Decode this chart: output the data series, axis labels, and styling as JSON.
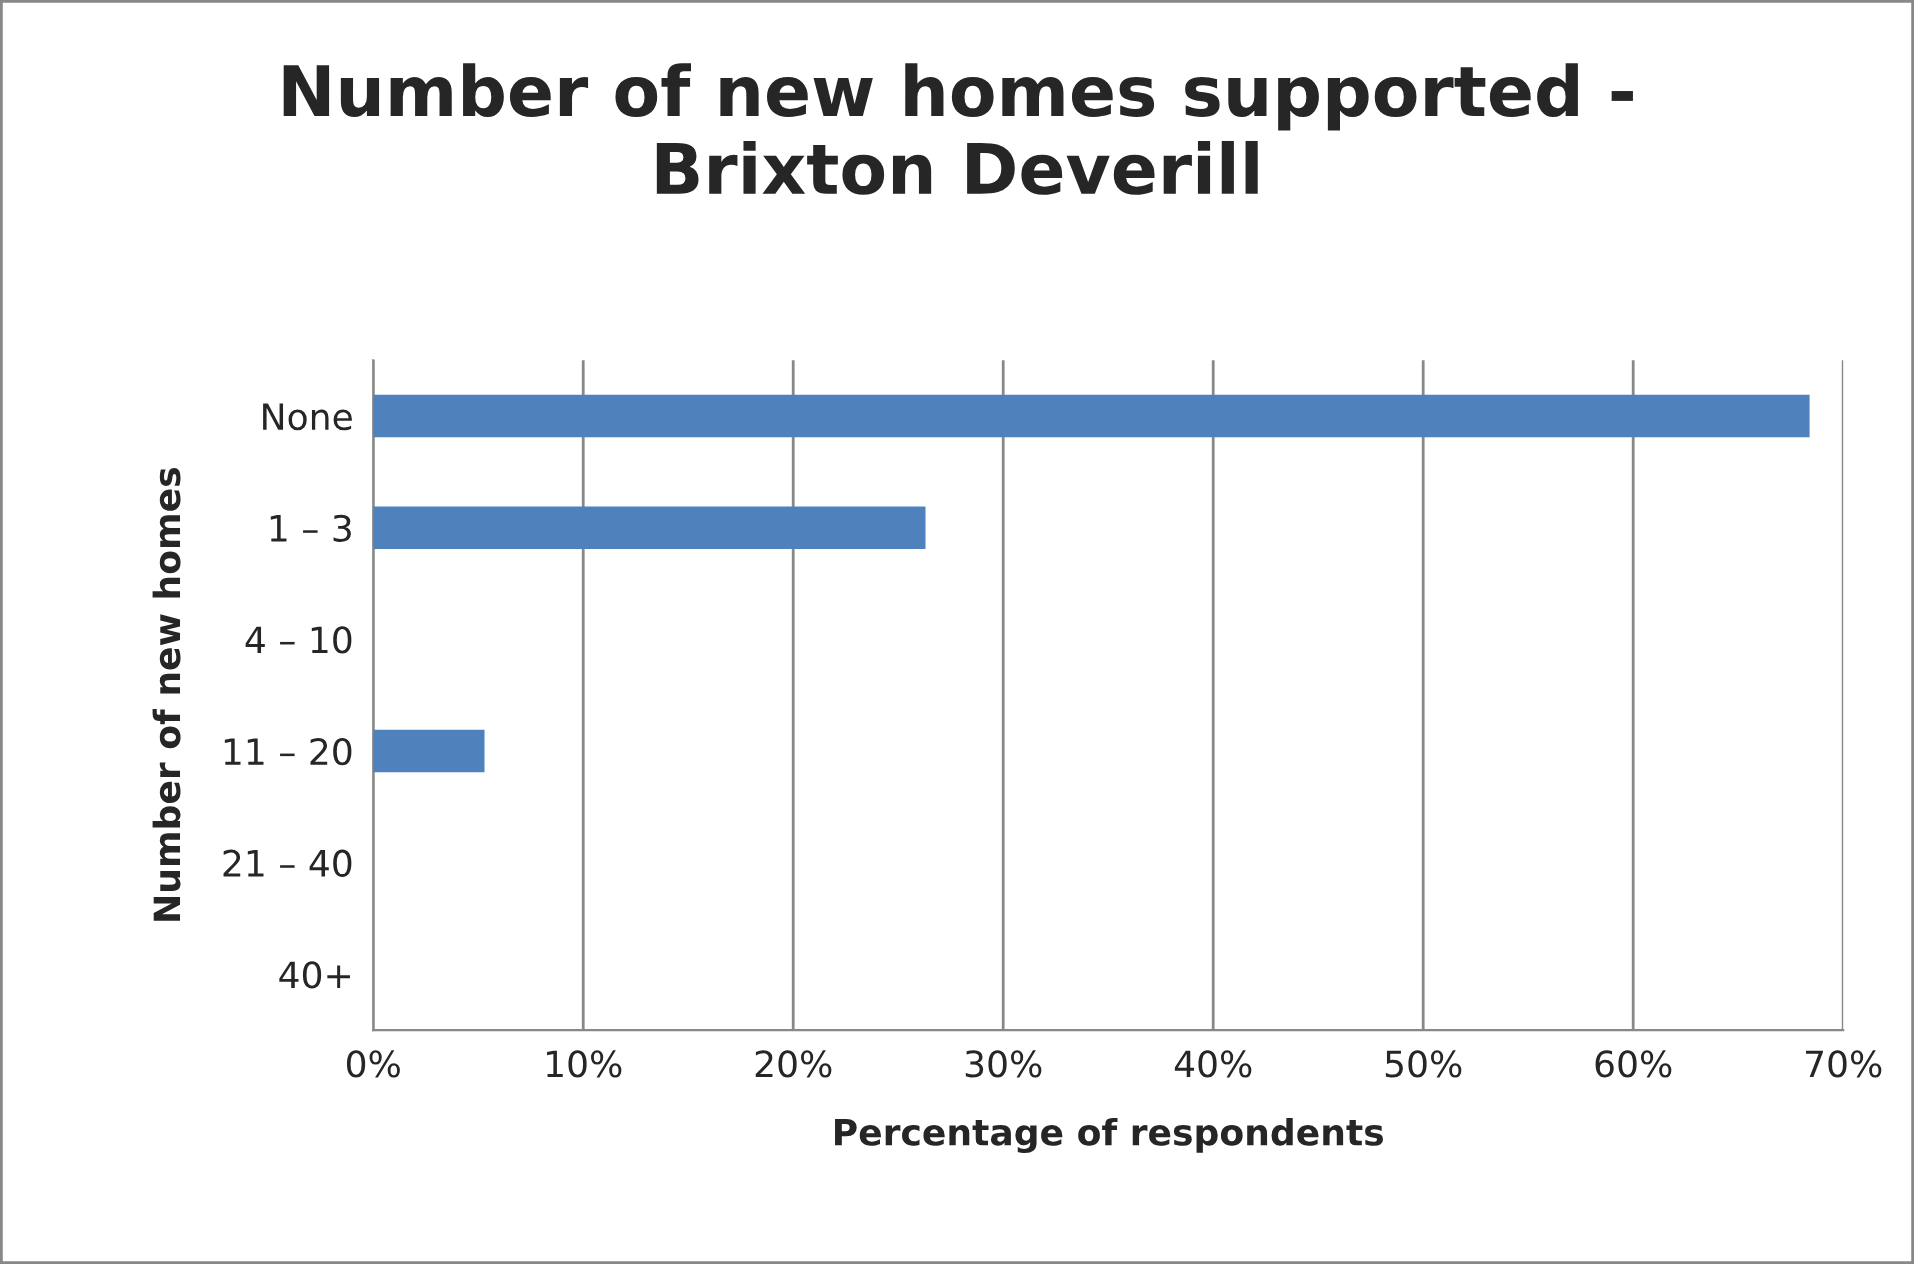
{
  "chart_data": {
    "type": "bar",
    "orientation": "horizontal",
    "title": "Number of new homes supported -\nBrixton Deverill",
    "xlabel": "Percentage of respondents",
    "ylabel": "Number of new homes",
    "categories": [
      "None",
      "1 – 3",
      "4 – 10",
      "11 – 20",
      "21 – 40",
      "40+"
    ],
    "values": [
      68.4,
      26.3,
      0,
      5.3,
      0,
      0
    ],
    "color": "#4f81bd",
    "xlim": [
      0,
      70
    ],
    "xticks": [
      {
        "value": 0,
        "label": "0%"
      },
      {
        "value": 10,
        "label": "10%"
      },
      {
        "value": 20,
        "label": "20%"
      },
      {
        "value": 30,
        "label": "30%"
      },
      {
        "value": 40,
        "label": "40%"
      },
      {
        "value": 50,
        "label": "50%"
      },
      {
        "value": 60,
        "label": "60%"
      },
      {
        "value": 70,
        "label": "70%"
      }
    ],
    "grid": "x"
  }
}
